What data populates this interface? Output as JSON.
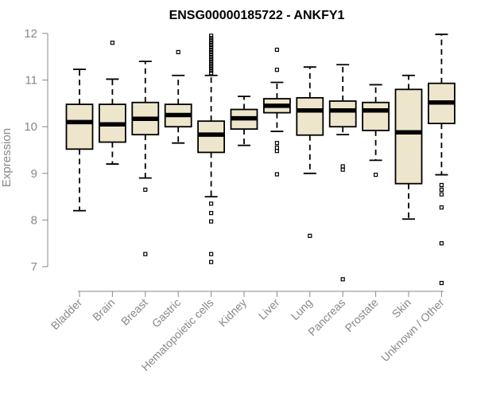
{
  "chart_data": {
    "type": "box",
    "title": "ENSG00000185722 - ANKFY1",
    "xlabel": "",
    "ylabel": "Expression",
    "ylim": [
      6.5,
      12.2
    ],
    "yticks": [
      7,
      8,
      9,
      10,
      11,
      12
    ],
    "colors": {
      "box_fill": "#ede6cc",
      "stroke": "#000000",
      "axis": "#888888"
    },
    "categories": [
      "Bladder",
      "Brain",
      "Breast",
      "Gastric",
      "Hematopoietic cells",
      "Kidney",
      "Liver",
      "Lung",
      "Pancreas",
      "Prostate",
      "Skin",
      "Unknown / Other"
    ],
    "boxes": [
      {
        "category": "Bladder",
        "whisker_low": 8.2,
        "q1": 9.52,
        "median": 10.1,
        "q3": 10.48,
        "whisker_high": 11.23,
        "outliers": []
      },
      {
        "category": "Brain",
        "whisker_low": 9.2,
        "q1": 9.67,
        "median": 10.05,
        "q3": 10.48,
        "whisker_high": 11.02,
        "outliers": [
          11.8
        ]
      },
      {
        "category": "Breast",
        "whisker_low": 8.9,
        "q1": 9.83,
        "median": 10.17,
        "q3": 10.52,
        "whisker_high": 11.4,
        "outliers": [
          8.65,
          7.27
        ]
      },
      {
        "category": "Gastric",
        "whisker_low": 9.65,
        "q1": 10.0,
        "median": 10.25,
        "q3": 10.48,
        "whisker_high": 11.1,
        "outliers": [
          11.6
        ]
      },
      {
        "category": "Hematopoietic cells",
        "whisker_low": 8.5,
        "q1": 9.45,
        "median": 9.83,
        "q3": 10.12,
        "whisker_high": 11.1,
        "outliers": [
          11.15,
          11.2,
          11.25,
          11.3,
          11.35,
          11.4,
          11.45,
          11.5,
          11.55,
          11.6,
          11.65,
          11.7,
          11.75,
          11.8,
          11.85,
          11.9,
          11.95,
          8.35,
          8.15,
          7.97,
          7.27,
          7.1
        ]
      },
      {
        "category": "Kidney",
        "whisker_low": 9.6,
        "q1": 9.95,
        "median": 10.18,
        "q3": 10.37,
        "whisker_high": 10.65,
        "outliers": []
      },
      {
        "category": "Liver",
        "whisker_low": 9.9,
        "q1": 10.3,
        "median": 10.45,
        "q3": 10.6,
        "whisker_high": 10.95,
        "outliers": [
          11.65,
          11.22,
          9.65,
          9.55,
          9.48,
          8.98
        ]
      },
      {
        "category": "Lung",
        "whisker_low": 9.0,
        "q1": 9.82,
        "median": 10.35,
        "q3": 10.62,
        "whisker_high": 11.28,
        "outliers": [
          7.66
        ]
      },
      {
        "category": "Pancreas",
        "whisker_low": 9.83,
        "q1": 10.0,
        "median": 10.35,
        "q3": 10.55,
        "whisker_high": 11.33,
        "outliers": [
          9.15,
          9.08,
          6.73
        ]
      },
      {
        "category": "Prostate",
        "whisker_low": 9.28,
        "q1": 9.92,
        "median": 10.35,
        "q3": 10.52,
        "whisker_high": 10.9,
        "outliers": [
          8.97
        ]
      },
      {
        "category": "Skin",
        "whisker_low": 8.02,
        "q1": 8.78,
        "median": 9.88,
        "q3": 10.8,
        "whisker_high": 11.1,
        "outliers": []
      },
      {
        "category": "Unknown / Other",
        "whisker_low": 8.97,
        "q1": 10.07,
        "median": 10.52,
        "q3": 10.93,
        "whisker_high": 11.98,
        "outliers": [
          8.75,
          8.65,
          8.55,
          8.27,
          7.5,
          6.65
        ]
      }
    ]
  }
}
